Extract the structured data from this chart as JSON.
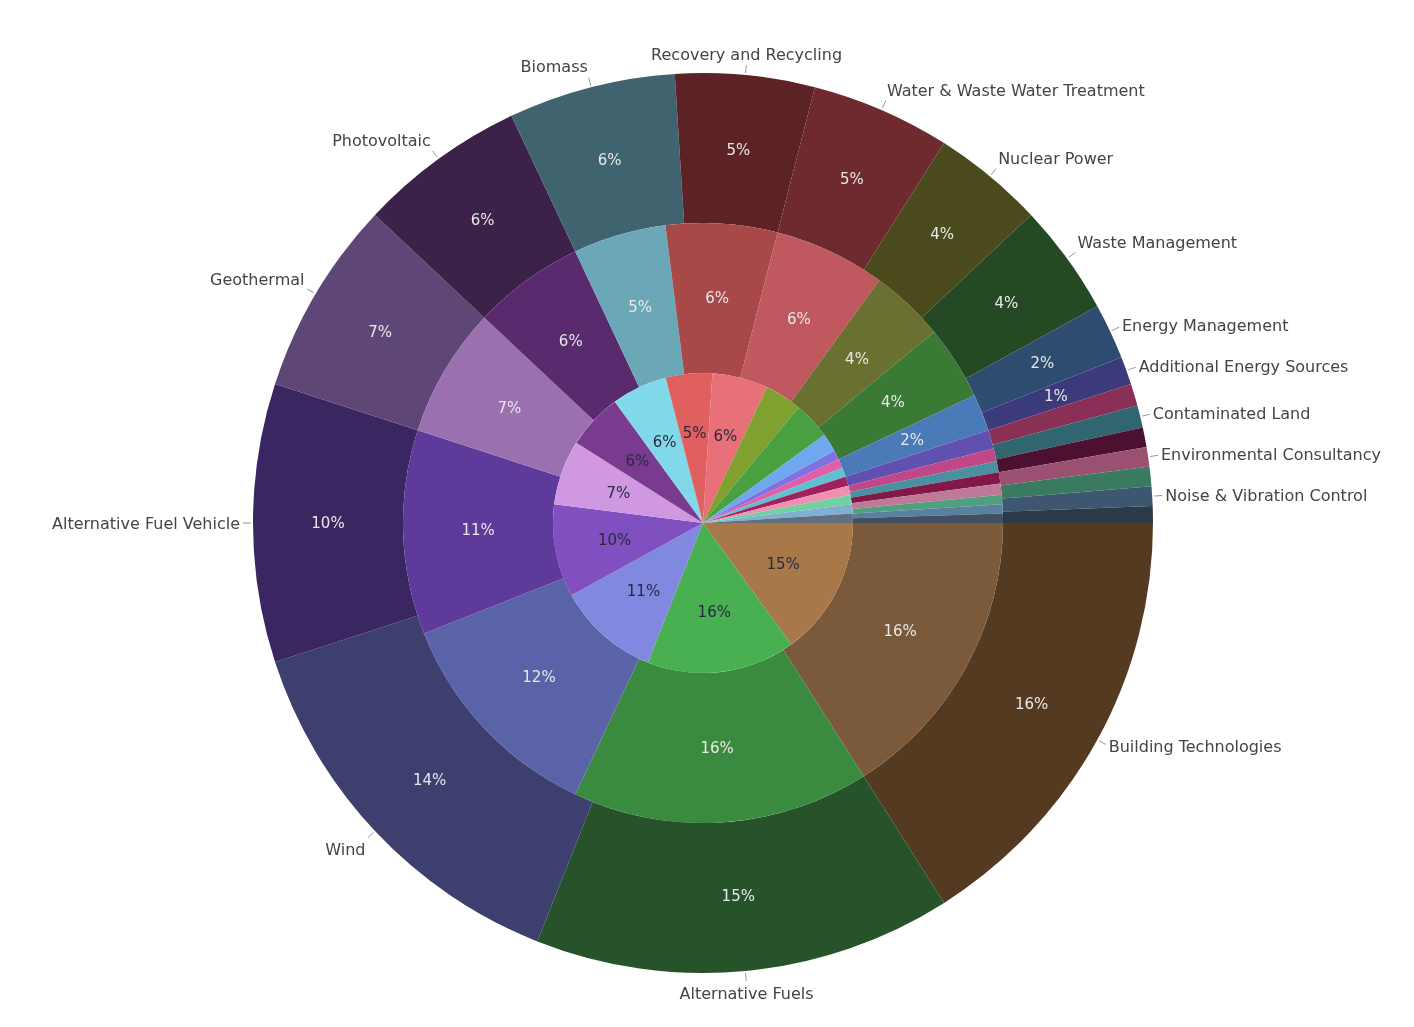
{
  "chart_data": {
    "type": "pie",
    "categories": [
      "Building Technologies",
      "Alternative Fuels",
      "Wind",
      "Alternative Fuel Vehicle",
      "Geothermal",
      "Photovoltaic",
      "Biomass",
      "Recovery and Recycling",
      "Water & Waste Water Treatment",
      "Nuclear Power",
      "Waste Management",
      "Energy Management",
      "Additional Energy Sources",
      null,
      "Contaminated Land",
      null,
      "Environmental Consultancy",
      null,
      "Noise & Vibration Control",
      null
    ],
    "series": [
      {
        "values": [
          16,
          15,
          14,
          10,
          7,
          6,
          6,
          5,
          5,
          4,
          4,
          2,
          1,
          0.8,
          0.8,
          0.7,
          0.7,
          0.7,
          0.7,
          0.6
        ],
        "value_labels": [
          "16%",
          "15%",
          "14%",
          "10%",
          "7%",
          "6%",
          "6%",
          "5%",
          "5%",
          "4%",
          "4%",
          "2%",
          "1%",
          null,
          null,
          null,
          null,
          null,
          null,
          null
        ],
        "colors": [
          "#553a22",
          "#27532a",
          "#3d3f6e",
          "#3a2660",
          "#5e4677",
          "#3c2148",
          "#3f6470",
          "#5c2225",
          "#6e2a2f",
          "#4a4a1c",
          "#254a23",
          "#2e4c70",
          "#3b3a7a",
          "#8a2f55",
          "#2f6670",
          "#4d1030",
          "#9a5070",
          "#3a7a60",
          "#3e5770",
          "#2a3a48"
        ]
      },
      {
        "values": [
          16,
          16,
          12,
          11,
          7,
          6,
          5,
          6,
          6,
          4,
          4,
          2,
          1,
          0.7,
          0.6,
          0.6,
          0.6,
          0.5,
          0.5,
          0.5
        ],
        "value_labels": [
          "16%",
          "16%",
          "12%",
          "11%",
          "7%",
          "6%",
          "5%",
          "6%",
          "6%",
          "4%",
          "4%",
          "2%",
          null,
          null,
          null,
          null,
          null,
          null,
          null,
          null
        ],
        "colors": [
          "#7a5a3a",
          "#3a8a40",
          "#5a63a8",
          "#5e3a9a",
          "#9a70b0",
          "#5a2a6e",
          "#6aa8b8",
          "#a84848",
          "#c05860",
          "#6a7030",
          "#3a7a35",
          "#4a7ab8",
          "#6050b0",
          "#c04888",
          "#4a90a0",
          "#801848",
          "#c07898",
          "#50a080",
          "#5a80a0",
          "#405060"
        ]
      },
      {
        "values": [
          15,
          16,
          11,
          10,
          7,
          6,
          6,
          5,
          6,
          4,
          4,
          2,
          1,
          1,
          1,
          1,
          1,
          1,
          1,
          1
        ],
        "value_labels": [
          "15%",
          "16%",
          "11%",
          "10%",
          "7%",
          "6%",
          "6%",
          "5%",
          "6%",
          null,
          null,
          null,
          null,
          null,
          null,
          null,
          null,
          null,
          null,
          null
        ],
        "colors": [
          "#a87848",
          "#48b050",
          "#8088e0",
          "#8050c0",
          "#d098e0",
          "#7a3a90",
          "#80d8e8",
          "#e06060",
          "#e87078",
          "#80a030",
          "#48a040",
          "#70a8f0",
          "#8070e0",
          "#e060a8",
          "#60c0d0",
          "#a02060",
          "#f090b0",
          "#70d0a0",
          "#80b0d0",
          "#607080"
        ]
      }
    ],
    "legend": false
  }
}
